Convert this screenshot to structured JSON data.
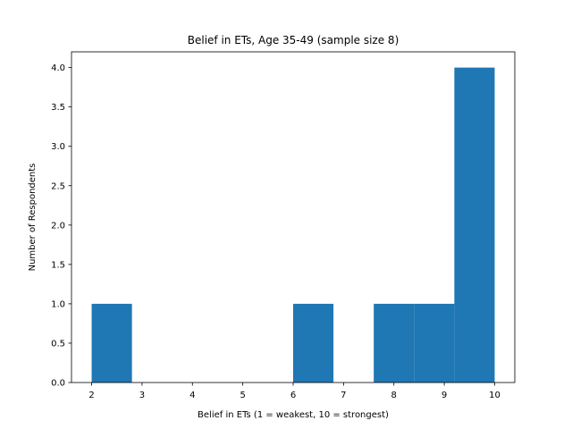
{
  "chart_data": {
    "type": "bar",
    "title": "Belief in ETs, Age 35-49 (sample size 8)",
    "xlabel": "Belief in ETs (1 = weakest, 10 = strongest)",
    "ylabel": "Number of Respondents",
    "bar_color": "#1f77b4",
    "bins": [
      {
        "start": 2.0,
        "end": 2.8,
        "count": 1
      },
      {
        "start": 2.8,
        "end": 3.6,
        "count": 0
      },
      {
        "start": 3.6,
        "end": 4.4,
        "count": 0
      },
      {
        "start": 4.4,
        "end": 5.2,
        "count": 0
      },
      {
        "start": 5.2,
        "end": 6.0,
        "count": 0
      },
      {
        "start": 6.0,
        "end": 6.8,
        "count": 1
      },
      {
        "start": 6.8,
        "end": 7.6,
        "count": 0
      },
      {
        "start": 7.6,
        "end": 8.4,
        "count": 1
      },
      {
        "start": 8.4,
        "end": 9.2,
        "count": 1
      },
      {
        "start": 9.2,
        "end": 10.0,
        "count": 4
      }
    ],
    "xlim": [
      1.6,
      10.4
    ],
    "ylim": [
      0,
      4.2
    ],
    "x_ticks": [
      "2",
      "3",
      "4",
      "5",
      "6",
      "7",
      "8",
      "9",
      "10"
    ],
    "y_ticks": [
      "0.0",
      "0.5",
      "1.0",
      "1.5",
      "2.0",
      "2.5",
      "3.0",
      "3.5",
      "4.0"
    ],
    "grid": false,
    "legend": "none"
  }
}
